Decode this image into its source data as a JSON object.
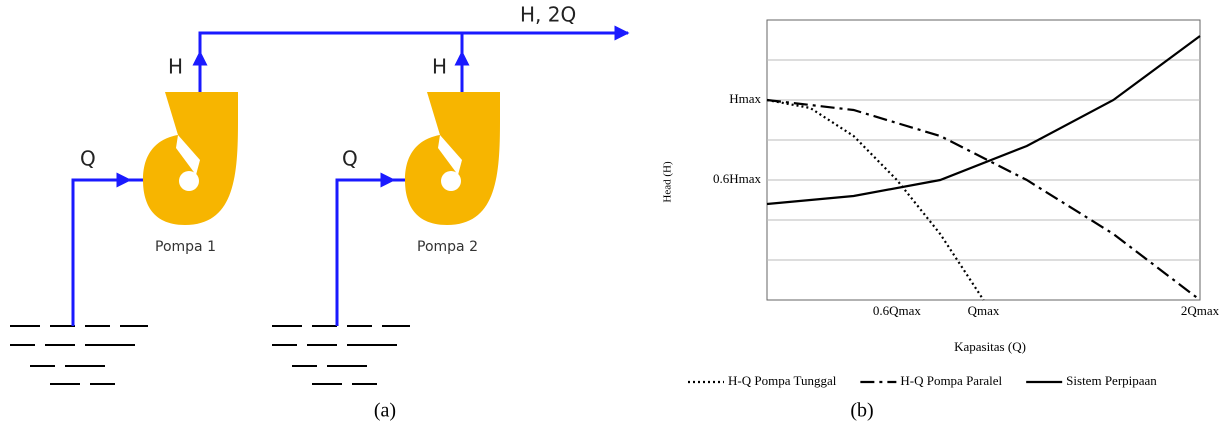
{
  "diagram": {
    "outlet_label": "H, 2Q",
    "pumps": [
      {
        "name": "Pompa 1",
        "head_label": "H",
        "flow_label": "Q"
      },
      {
        "name": "Pompa 2",
        "head_label": "H",
        "flow_label": "Q"
      }
    ]
  },
  "chart_data": {
    "type": "line",
    "xlabel": "Kapasitas (Q)",
    "ylabel": "Head (H)",
    "xlim": [
      0,
      2
    ],
    "ylim": [
      0,
      1.4
    ],
    "xticks": [
      {
        "value": 0.6,
        "label": "0.6Qmax"
      },
      {
        "value": 1,
        "label": "Qmax"
      },
      {
        "value": 2,
        "label": "2Qmax"
      }
    ],
    "yticks": [
      {
        "value": 0.2,
        "label": null
      },
      {
        "value": 0.4,
        "label": null
      },
      {
        "value": 0.6,
        "label": "0.6Hmax"
      },
      {
        "value": 0.8,
        "label": null
      },
      {
        "value": 1,
        "label": "Hmax"
      },
      {
        "value": 1.2,
        "label": null
      }
    ],
    "grid": true,
    "legend": "bottom",
    "series": [
      {
        "name": "H-Q Pompa Tunggal",
        "color": "#000000",
        "linestyle": "dotted",
        "x": [
          0,
          0.2,
          0.4,
          0.6,
          0.8,
          1.0
        ],
        "values": [
          1,
          0.96,
          0.82,
          0.6,
          0.33,
          0
        ]
      },
      {
        "name": "H-Q Pompa Paralel",
        "color": "#000000",
        "linestyle": "dashdot",
        "x": [
          0,
          0.4,
          0.8,
          1.2,
          1.6,
          2.0
        ],
        "values": [
          1,
          0.95,
          0.82,
          0.6,
          0.33,
          0
        ]
      },
      {
        "name": "Sistem Perpipaan",
        "color": "#000000",
        "linestyle": "solid",
        "x": [
          0,
          0.4,
          0.8,
          1.2,
          1.6,
          2.0
        ],
        "values": [
          0.48,
          0.52,
          0.6,
          0.77,
          1.0,
          1.32
        ]
      }
    ]
  },
  "captions": {
    "a": "(a)",
    "b": "(b)"
  }
}
